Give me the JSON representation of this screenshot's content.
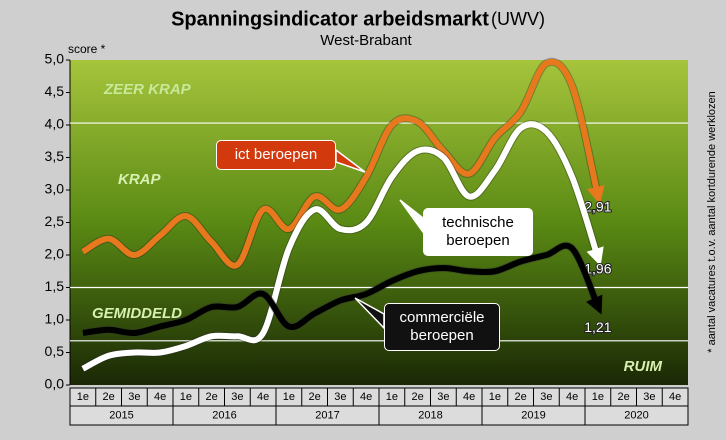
{
  "chart_data": {
    "type": "line",
    "title": "Spanningsindicator arbeidsmarkt",
    "publisher": "(UWV)",
    "subtitle": "West-Brabant",
    "y_label": "score *",
    "footnote": "* aantal vacatures t.o.v. aantal kortdurende werklozen",
    "categories": [
      "1e",
      "2e",
      "3e",
      "4e",
      "1e",
      "2e",
      "3e",
      "4e",
      "1e",
      "2e",
      "3e",
      "4e",
      "1e",
      "2e",
      "3e",
      "4e",
      "1e",
      "2e",
      "3e",
      "4e",
      "1e",
      "2e",
      "3e",
      "4e"
    ],
    "years": [
      "2015",
      "2016",
      "2017",
      "2018",
      "2019",
      "2020"
    ],
    "ylim": [
      0,
      5
    ],
    "yticks": [
      {
        "value": 0,
        "label": "0,0"
      },
      {
        "value": 0.5,
        "label": "0,5"
      },
      {
        "value": 1,
        "label": "1,0"
      },
      {
        "value": 1.5,
        "label": "1,5"
      },
      {
        "value": 2,
        "label": "2,0"
      },
      {
        "value": 2.5,
        "label": "2,5"
      },
      {
        "value": 3,
        "label": "3,0"
      },
      {
        "value": 3.5,
        "label": "3,5"
      },
      {
        "value": 4,
        "label": "4,0"
      },
      {
        "value": 4.5,
        "label": "4,5"
      },
      {
        "value": 5,
        "label": "5,0"
      }
    ],
    "zones": [
      {
        "label": "ZEER KRAP",
        "from": 4.03
      },
      {
        "label": "KRAP",
        "from": 1.5
      },
      {
        "label": "GEMIDDELD",
        "from": 0.68
      },
      {
        "label": "RUIM",
        "from": 0
      }
    ],
    "series": [
      {
        "name": "ict beroepen",
        "color": "#e8781e",
        "values": [
          2.05,
          2.25,
          2.0,
          2.3,
          2.6,
          2.2,
          1.85,
          2.7,
          2.4,
          2.9,
          2.7,
          3.2,
          4.0,
          4.05,
          3.6,
          3.25,
          3.8,
          4.2,
          4.95,
          4.6,
          2.91,
          null,
          null,
          null
        ],
        "value_labels": [
          null,
          null,
          null,
          null,
          null,
          null,
          null,
          null,
          null,
          null,
          null,
          null,
          null,
          null,
          null,
          null,
          null,
          null,
          null,
          null,
          "2,91",
          null,
          null,
          null
        ]
      },
      {
        "name": "technische beroepen",
        "color": "#ffffff",
        "values": [
          0.25,
          0.45,
          0.5,
          0.5,
          0.6,
          0.75,
          0.75,
          0.8,
          2.1,
          2.7,
          2.4,
          2.5,
          3.2,
          3.6,
          3.5,
          2.9,
          3.3,
          3.95,
          3.9,
          3.2,
          1.96,
          null,
          null,
          null
        ],
        "value_labels": [
          null,
          null,
          null,
          null,
          null,
          null,
          null,
          null,
          null,
          null,
          null,
          null,
          null,
          null,
          null,
          null,
          null,
          null,
          null,
          null,
          "1,96",
          null,
          null,
          null
        ]
      },
      {
        "name": "commerciële beroepen",
        "color": "#000000",
        "values": [
          0.8,
          0.85,
          0.8,
          0.9,
          1.0,
          1.2,
          1.2,
          1.4,
          0.9,
          1.1,
          1.3,
          1.4,
          1.6,
          1.75,
          1.8,
          1.75,
          1.75,
          1.9,
          2.0,
          2.1,
          1.21,
          null,
          null,
          null
        ],
        "value_labels": [
          null,
          null,
          null,
          null,
          null,
          null,
          null,
          null,
          null,
          null,
          null,
          null,
          null,
          null,
          null,
          null,
          null,
          null,
          null,
          null,
          "1,21",
          null,
          null,
          null
        ]
      }
    ]
  }
}
